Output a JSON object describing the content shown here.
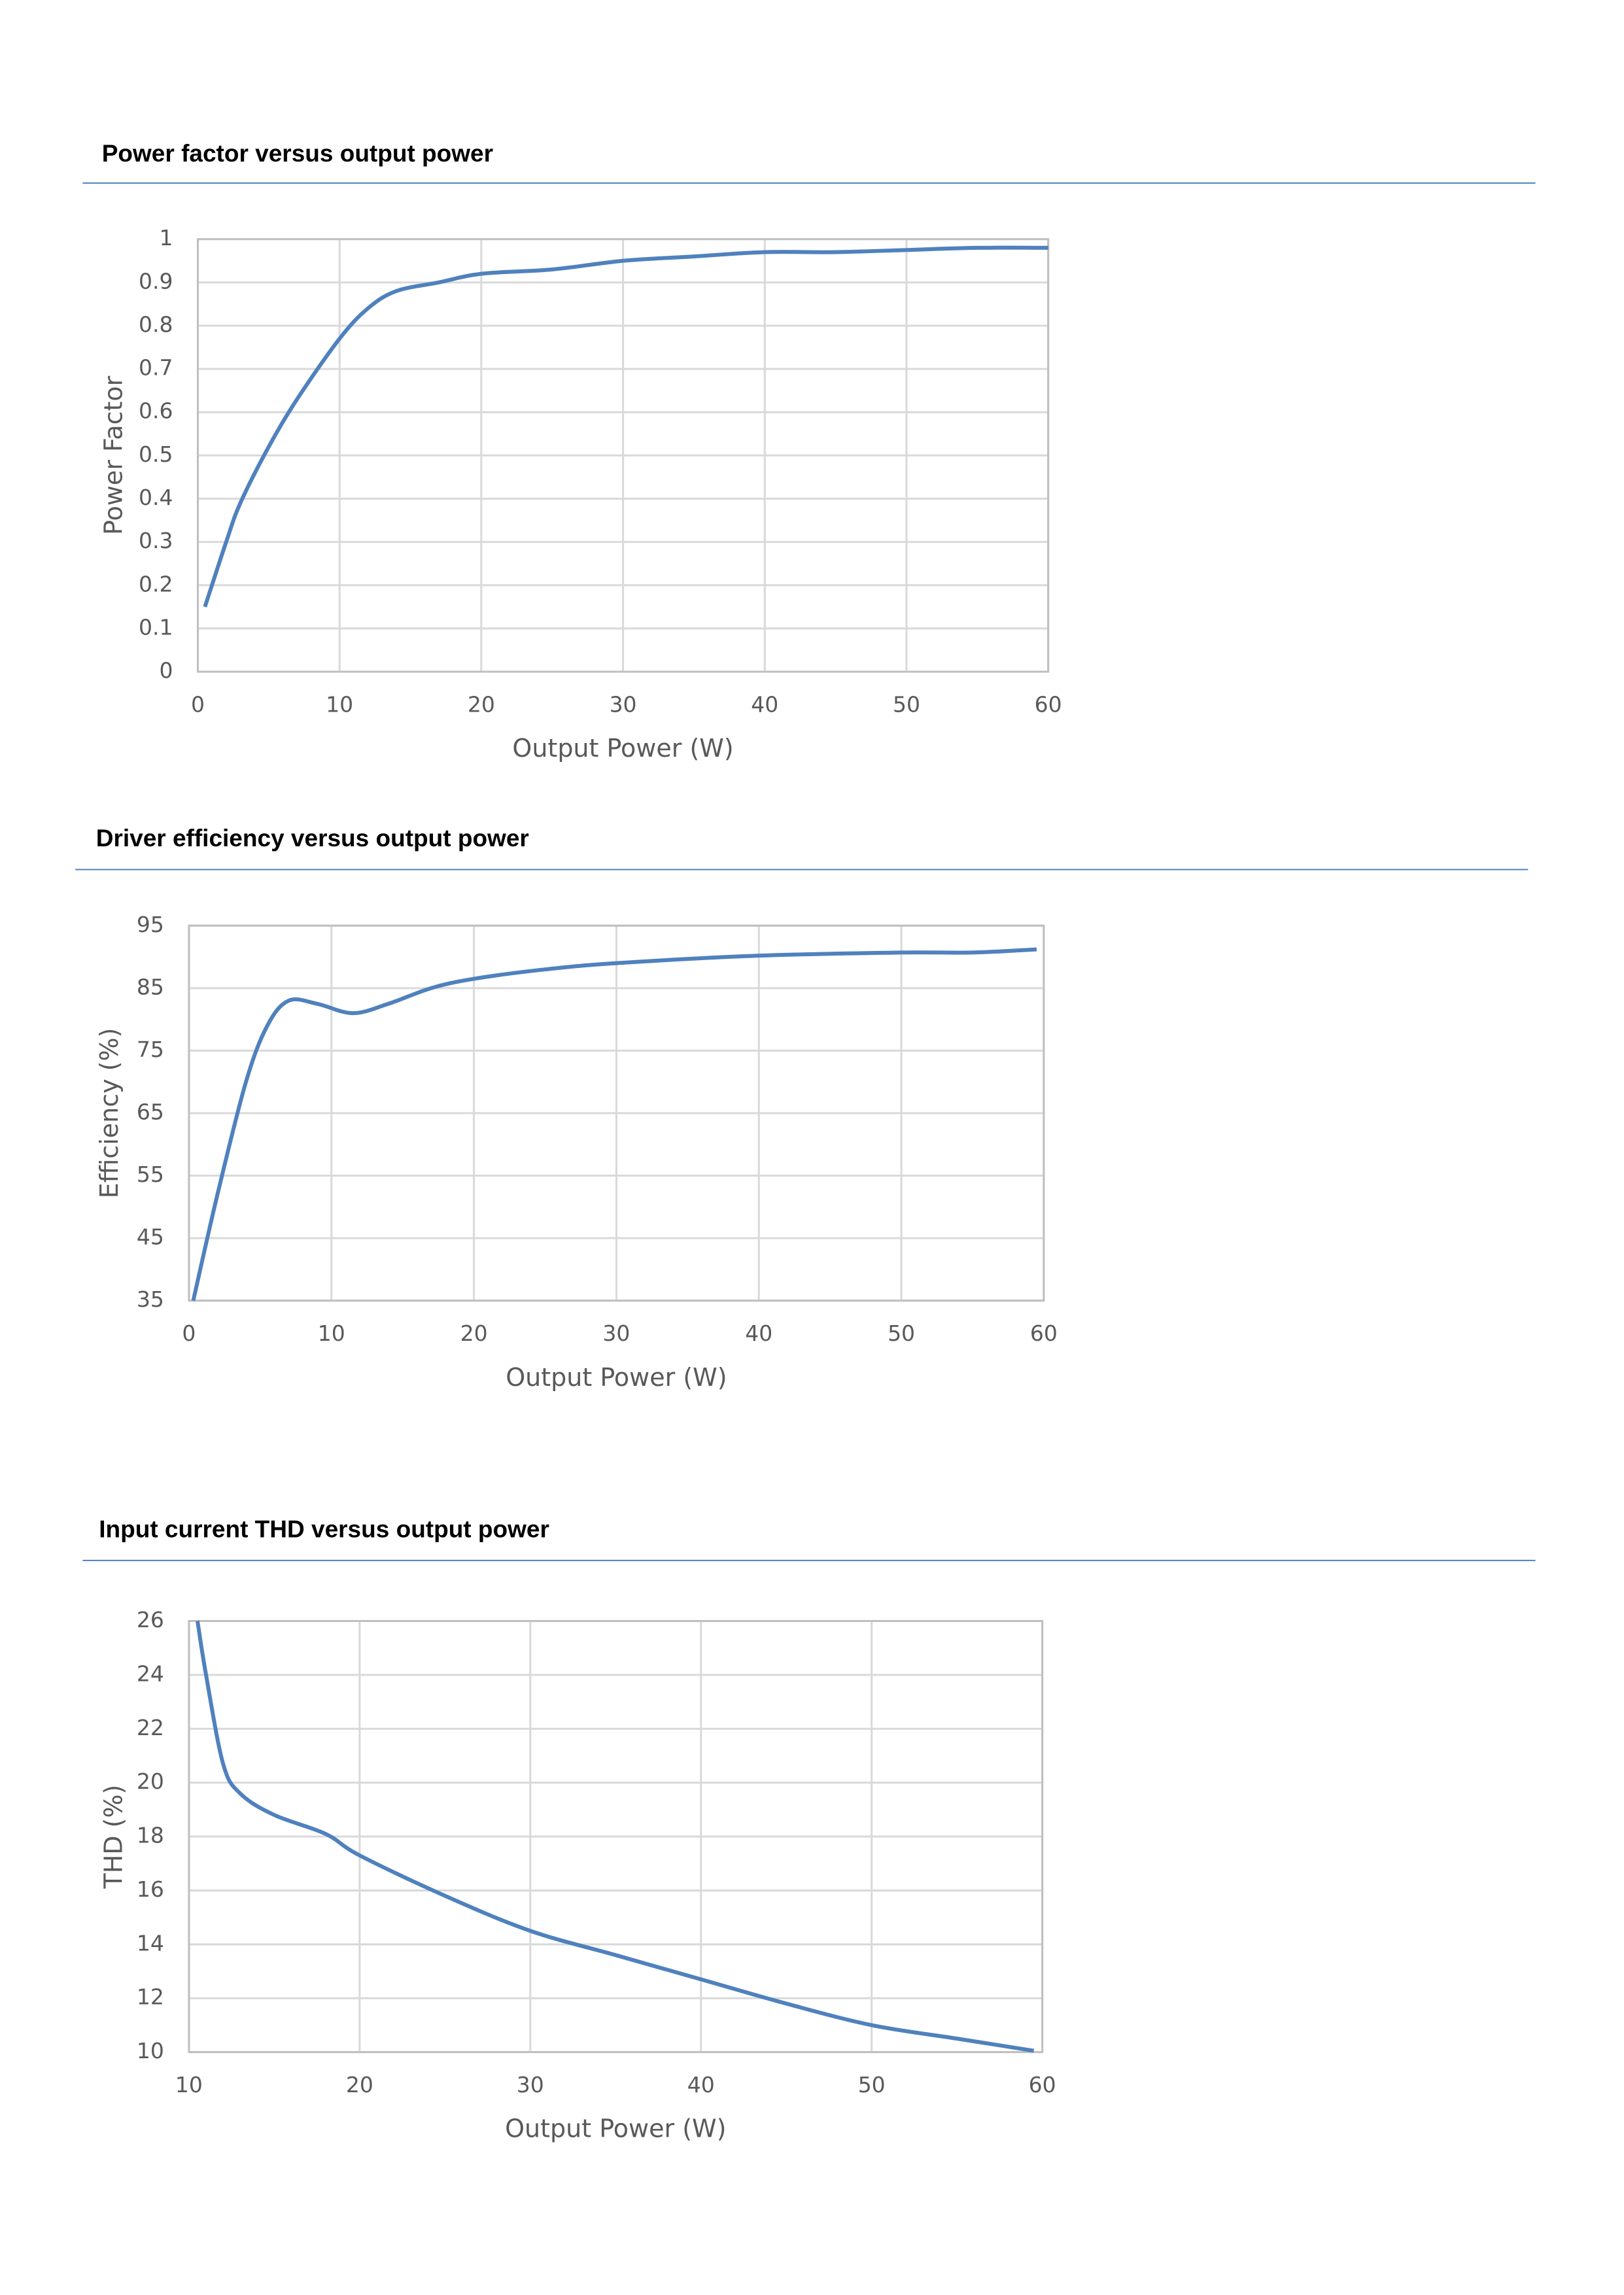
{
  "chart_data": [
    {
      "type": "line",
      "title": "Power factor versus output power",
      "x_label": "Output Power (W)",
      "y_label": "Power Factor",
      "x": [
        0.5,
        2,
        3,
        5,
        7,
        10,
        12,
        14,
        17,
        20,
        25,
        30,
        35,
        40,
        45,
        50,
        55,
        60
      ],
      "values": [
        0.15,
        0.3,
        0.39,
        0.52,
        0.63,
        0.77,
        0.84,
        0.88,
        0.9,
        0.92,
        0.93,
        0.95,
        0.96,
        0.97,
        0.97,
        0.975,
        0.98,
        0.98
      ],
      "color": "#4f81bd",
      "xlim": [
        0,
        60
      ],
      "xticks": [
        0,
        10,
        20,
        30,
        40,
        50,
        60
      ],
      "ylim": [
        0,
        1
      ],
      "yticks": [
        0,
        0.1,
        0.2,
        0.3,
        0.4,
        0.5,
        0.6,
        0.7,
        0.8,
        0.9,
        1
      ],
      "grid": true
    },
    {
      "type": "line",
      "title": "Driver efficiency versus output power",
      "x_label": "Output Power (W)",
      "y_label": "Efficiency (%)",
      "x": [
        0.3,
        2,
        4,
        5.5,
        7,
        9,
        11.5,
        14,
        17,
        20,
        25,
        30,
        40,
        50,
        55,
        59.5
      ],
      "values": [
        35,
        52,
        70,
        79,
        83,
        82.5,
        81,
        82.5,
        85,
        86.5,
        88,
        89,
        90.2,
        90.7,
        90.7,
        91.2
      ],
      "color": "#4f81bd",
      "xlim": [
        0,
        60
      ],
      "xticks": [
        0,
        10,
        20,
        30,
        40,
        50,
        60
      ],
      "ylim": [
        35,
        95
      ],
      "yticks": [
        35,
        45,
        55,
        65,
        75,
        85,
        95
      ],
      "grid": true
    },
    {
      "type": "line",
      "title": "Input current THD versus output power",
      "x_label": "Output Power (W)",
      "y_label": "THD (%)",
      "x": [
        10.5,
        11,
        12,
        13,
        15,
        18,
        20,
        25,
        30,
        35,
        40,
        45,
        50,
        55,
        59.5
      ],
      "values": [
        26,
        24,
        20.7,
        19.6,
        18.8,
        18.1,
        17.3,
        15.8,
        14.5,
        13.6,
        12.7,
        11.8,
        11,
        10.5,
        10.05
      ],
      "color": "#4f81bd",
      "xlim": [
        10,
        60
      ],
      "xticks": [
        10,
        20,
        30,
        40,
        50,
        60
      ],
      "ylim": [
        10,
        26
      ],
      "yticks": [
        10,
        12,
        14,
        16,
        18,
        20,
        22,
        24,
        26
      ],
      "grid": true
    }
  ]
}
